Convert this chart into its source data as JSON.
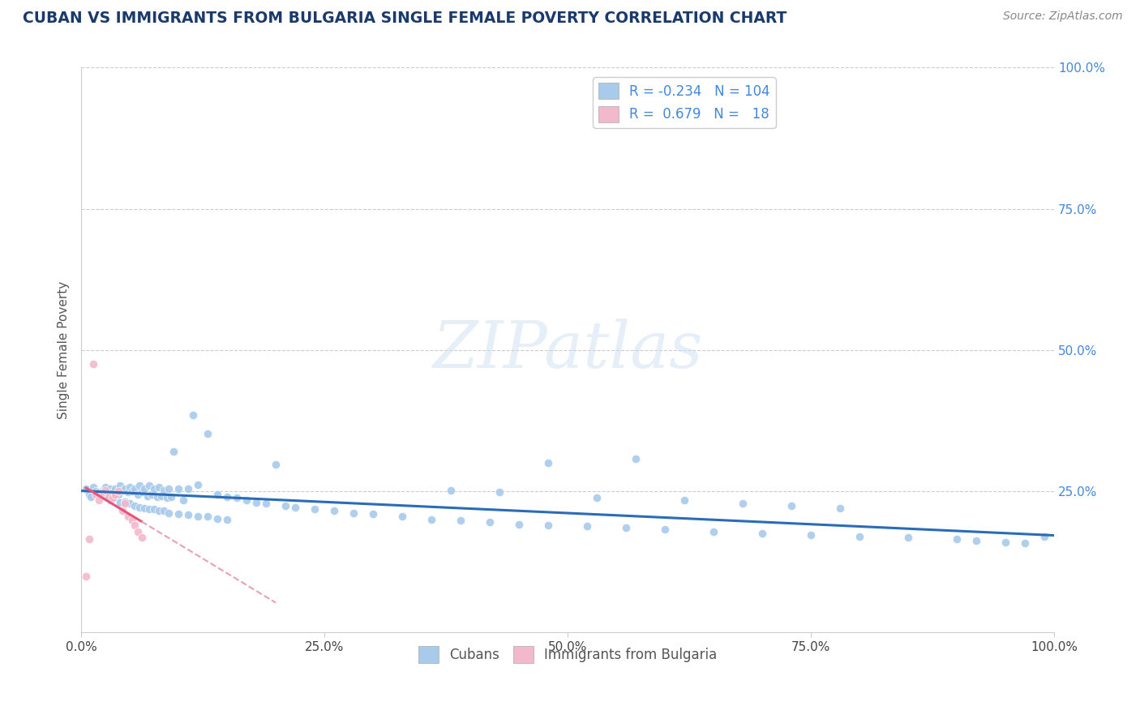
{
  "title": "CUBAN VS IMMIGRANTS FROM BULGARIA SINGLE FEMALE POVERTY CORRELATION CHART",
  "source": "Source: ZipAtlas.com",
  "ylabel": "Single Female Poverty",
  "watermark": "ZIPatlas",
  "blue_color": "#a8caeb",
  "pink_color": "#f2b8cc",
  "blue_line_color": "#2b6cb8",
  "pink_line_color": "#e8547a",
  "pink_dash_color": "#e8a0b8",
  "title_color": "#1a3a6b",
  "label_color": "#4488dd",
  "source_color": "#888888",
  "xlim": [
    0.0,
    1.0
  ],
  "ylim": [
    0.0,
    1.0
  ],
  "cubans_x": [
    0.005,
    0.008,
    0.01,
    0.012,
    0.015,
    0.018,
    0.02,
    0.022,
    0.025,
    0.025,
    0.028,
    0.03,
    0.03,
    0.032,
    0.035,
    0.035,
    0.038,
    0.04,
    0.04,
    0.042,
    0.045,
    0.045,
    0.048,
    0.05,
    0.05,
    0.052,
    0.055,
    0.055,
    0.058,
    0.06,
    0.06,
    0.062,
    0.065,
    0.065,
    0.068,
    0.07,
    0.07,
    0.072,
    0.075,
    0.075,
    0.078,
    0.08,
    0.08,
    0.082,
    0.085,
    0.085,
    0.088,
    0.09,
    0.09,
    0.092,
    0.095,
    0.1,
    0.1,
    0.105,
    0.11,
    0.11,
    0.115,
    0.12,
    0.12,
    0.13,
    0.13,
    0.14,
    0.14,
    0.15,
    0.15,
    0.16,
    0.17,
    0.18,
    0.19,
    0.2,
    0.21,
    0.22,
    0.24,
    0.26,
    0.28,
    0.3,
    0.33,
    0.36,
    0.39,
    0.42,
    0.45,
    0.48,
    0.52,
    0.56,
    0.6,
    0.65,
    0.7,
    0.75,
    0.8,
    0.85,
    0.9,
    0.92,
    0.95,
    0.97,
    0.99,
    0.38,
    0.43,
    0.48,
    0.53,
    0.57,
    0.62,
    0.68,
    0.73,
    0.78
  ],
  "cubans_y": [
    0.255,
    0.245,
    0.24,
    0.258,
    0.25,
    0.248,
    0.245,
    0.252,
    0.258,
    0.24,
    0.25,
    0.255,
    0.235,
    0.248,
    0.255,
    0.238,
    0.245,
    0.26,
    0.23,
    0.252,
    0.255,
    0.232,
    0.248,
    0.258,
    0.228,
    0.25,
    0.255,
    0.225,
    0.245,
    0.26,
    0.222,
    0.248,
    0.255,
    0.22,
    0.242,
    0.26,
    0.218,
    0.245,
    0.255,
    0.218,
    0.24,
    0.258,
    0.215,
    0.242,
    0.252,
    0.215,
    0.238,
    0.255,
    0.212,
    0.24,
    0.32,
    0.255,
    0.21,
    0.235,
    0.255,
    0.208,
    0.385,
    0.262,
    0.205,
    0.352,
    0.205,
    0.245,
    0.202,
    0.24,
    0.2,
    0.238,
    0.235,
    0.23,
    0.228,
    0.298,
    0.225,
    0.222,
    0.218,
    0.215,
    0.212,
    0.21,
    0.205,
    0.2,
    0.198,
    0.195,
    0.192,
    0.19,
    0.188,
    0.185,
    0.182,
    0.179,
    0.175,
    0.172,
    0.17,
    0.168,
    0.165,
    0.162,
    0.16,
    0.158,
    0.17,
    0.252,
    0.248,
    0.3,
    0.238,
    0.308,
    0.235,
    0.229,
    0.225,
    0.22
  ],
  "bulgaria_x": [
    0.005,
    0.008,
    0.012,
    0.015,
    0.018,
    0.022,
    0.025,
    0.028,
    0.032,
    0.035,
    0.038,
    0.042,
    0.045,
    0.048,
    0.052,
    0.055,
    0.058,
    0.062
  ],
  "bulgaria_y": [
    0.1,
    0.165,
    0.475,
    0.245,
    0.235,
    0.248,
    0.252,
    0.24,
    0.238,
    0.245,
    0.25,
    0.215,
    0.228,
    0.205,
    0.198,
    0.19,
    0.178,
    0.168
  ]
}
